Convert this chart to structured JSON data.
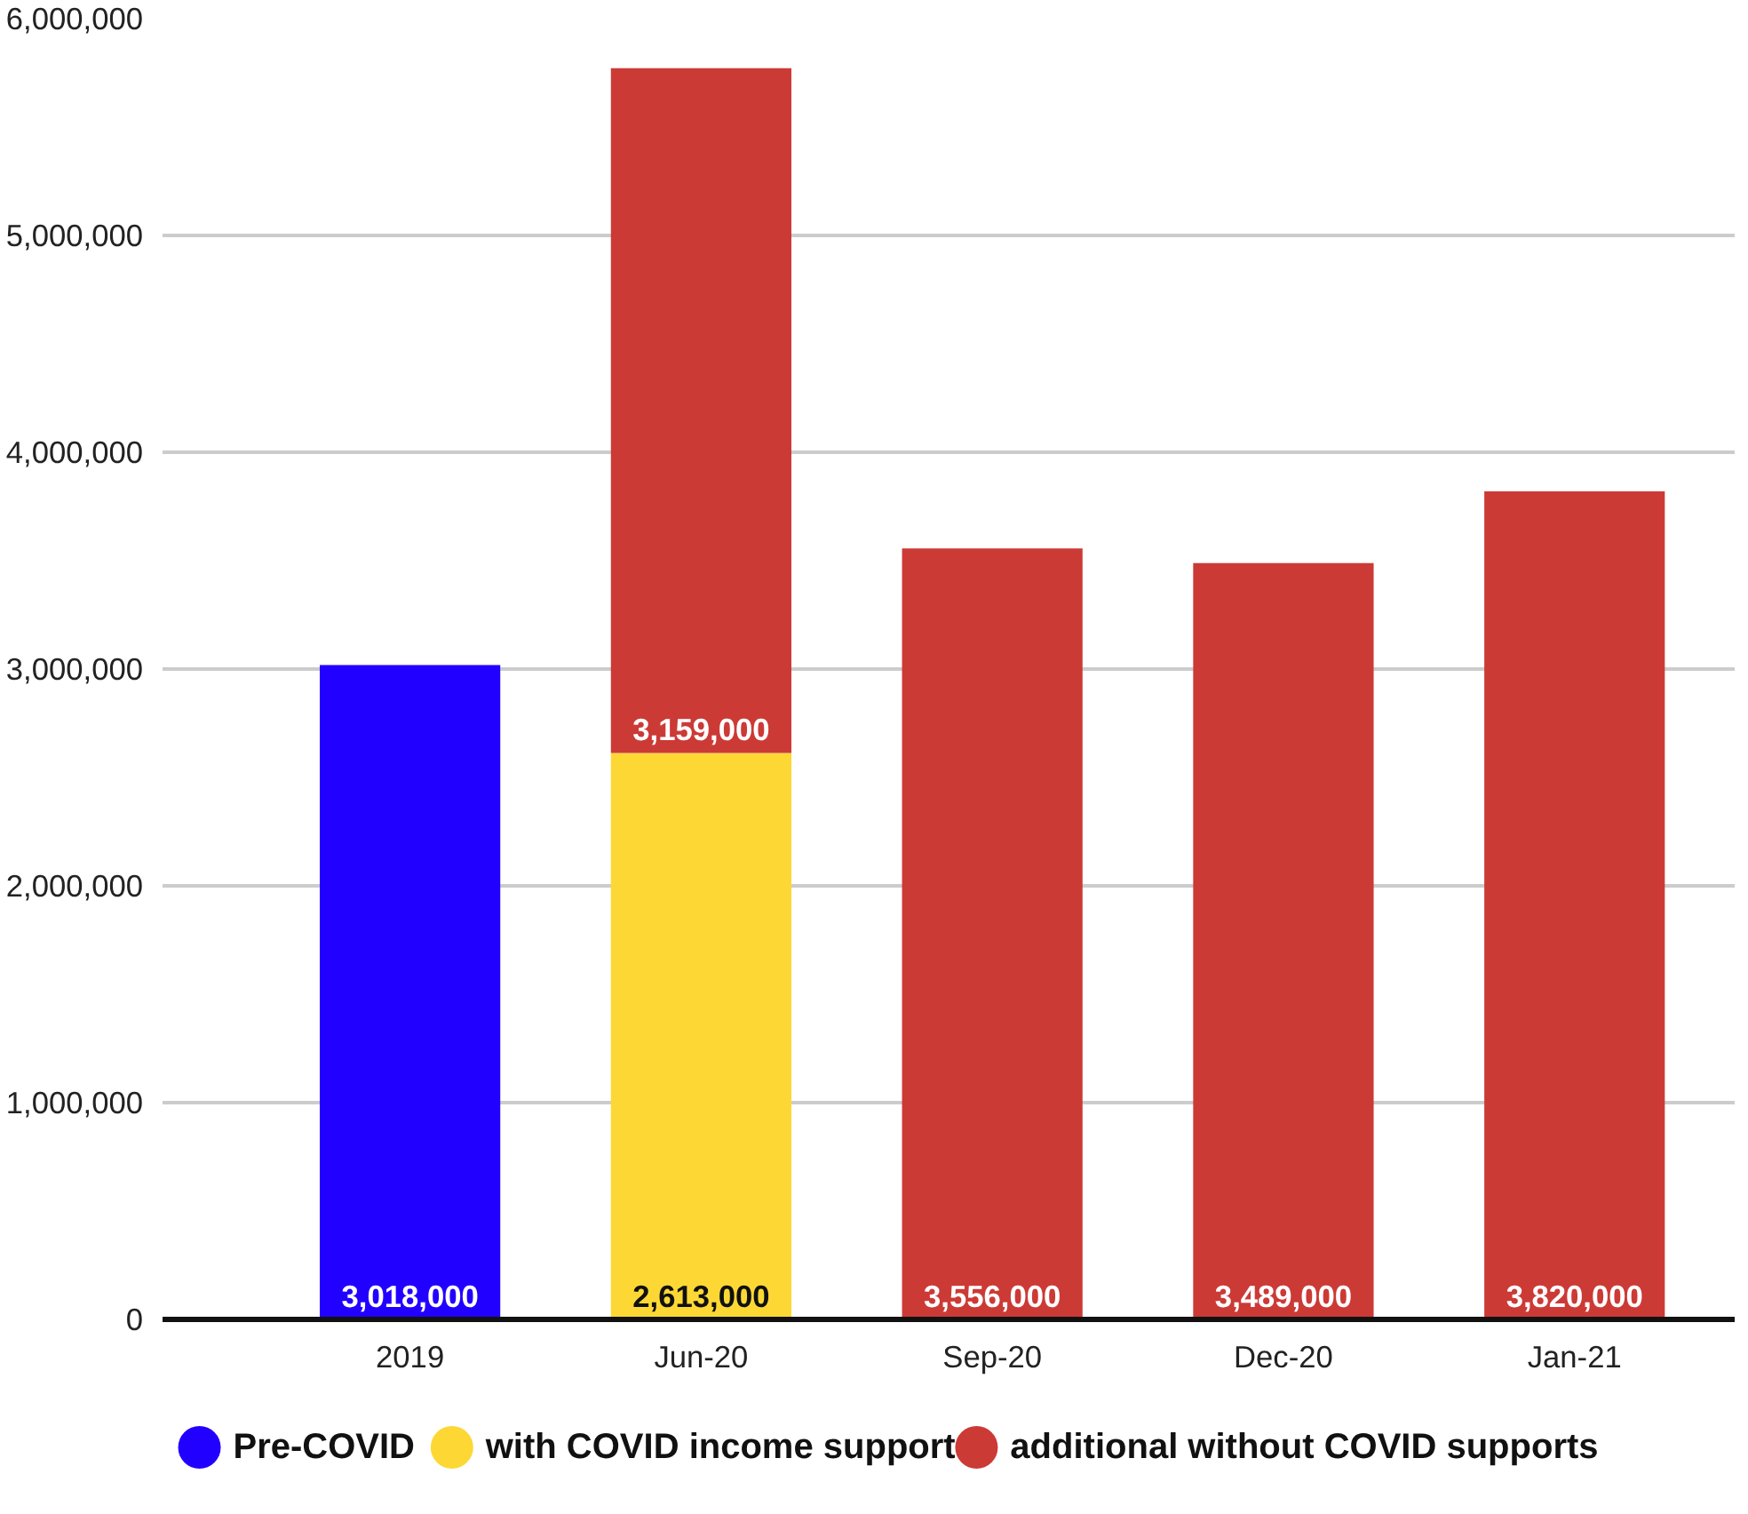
{
  "chart_data": {
    "type": "bar",
    "stacked": true,
    "categories": [
      "2019",
      "Jun-20",
      "Sep-20",
      "Dec-20",
      "Jan-21"
    ],
    "series": [
      {
        "name": "Pre-COVID",
        "color": "#2200ff",
        "values": [
          3018000,
          null,
          null,
          null,
          null
        ],
        "value_labels": [
          "3,018,000",
          null,
          null,
          null,
          null
        ]
      },
      {
        "name": "with COVID income support",
        "color": "#fdd835",
        "values": [
          null,
          2613000,
          null,
          null,
          null
        ],
        "value_labels": [
          null,
          "2,613,000",
          null,
          null,
          null
        ]
      },
      {
        "name": "additional without COVID supports",
        "color": "#cc3a36",
        "values": [
          null,
          3159000,
          3556000,
          3489000,
          3820000
        ],
        "value_labels": [
          null,
          "3,159,000",
          "3,556,000",
          "3,489,000",
          "3,820,000"
        ]
      }
    ],
    "ylim": [
      0,
      6000000
    ],
    "yticks": [
      0,
      {
        "value": 1000000,
        "label": "1,000,000"
      },
      {
        "value": 2000000,
        "label": "2,000,000"
      },
      {
        "value": 3000000,
        "label": "3,000,000"
      },
      {
        "value": 4000000,
        "label": "4,000,000"
      },
      {
        "value": 5000000,
        "label": "5,000,000"
      },
      {
        "value": 6000000,
        "label": "6,000,000"
      }
    ],
    "grid": "y",
    "legend": "bottom",
    "marker": "circle"
  }
}
